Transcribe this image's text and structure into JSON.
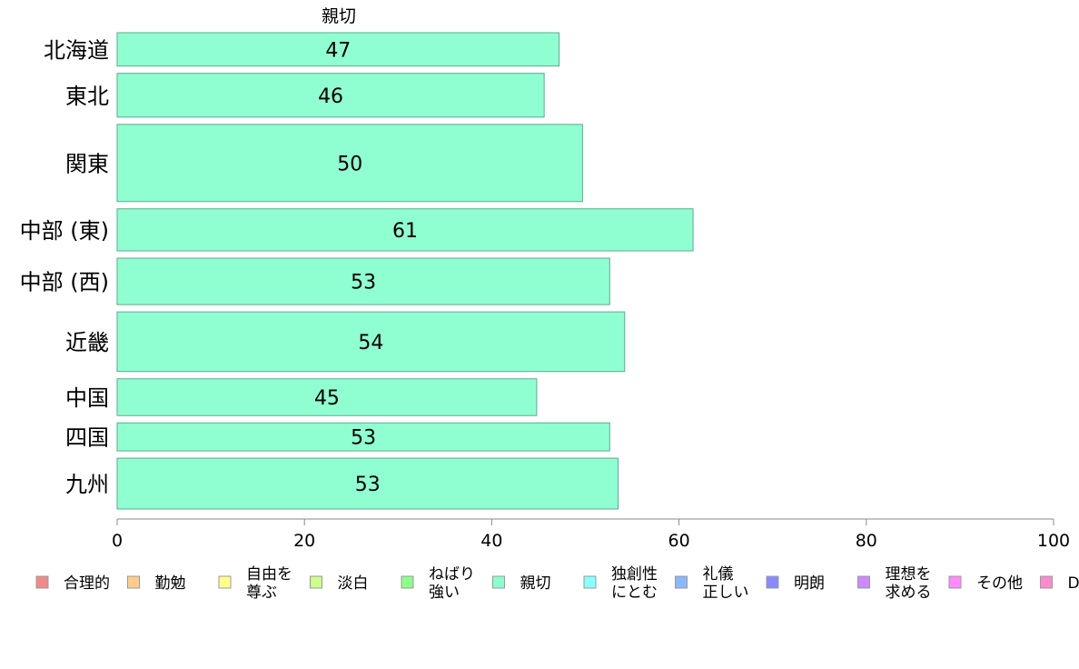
{
  "chart_data": {
    "type": "bar",
    "orientation": "horizontal",
    "title": "親切",
    "categories": [
      "北海道",
      "東北",
      "関東",
      "中部 (東)",
      "中部 (西)",
      "近畿",
      "中国",
      "四国",
      "九州"
    ],
    "values": [
      47.2,
      45.6,
      49.7,
      61.5,
      52.6,
      54.2,
      44.8,
      52.6,
      53.5
    ],
    "value_labels": [
      "47",
      "46",
      "50",
      "61",
      "53",
      "54",
      "45",
      "53",
      "53"
    ],
    "bar_weights": [
      38,
      50,
      88,
      48,
      53,
      68,
      42,
      32,
      58
    ],
    "bar_color": "#8fffd2",
    "bar_border": "#5faa8c",
    "xlim": [
      0,
      100
    ],
    "xticks": [
      0,
      20,
      40,
      60,
      80,
      100
    ],
    "xtick_labels": [
      "0",
      "20",
      "40",
      "60",
      "80",
      "100"
    ],
    "xlabel": "",
    "ylabel": "",
    "grid": false,
    "legend_position": "bottom",
    "legend": [
      {
        "label": "合理的",
        "color": "#f08a8a"
      },
      {
        "label": "勤勉",
        "color": "#ffcc8a"
      },
      {
        "label": "自由を\n尊ぶ",
        "color": "#ffff8a"
      },
      {
        "label": "淡白",
        "color": "#ccff8a"
      },
      {
        "label": "ねばり\n強い",
        "color": "#8aff8a"
      },
      {
        "label": "親切",
        "color": "#8affcc"
      },
      {
        "label": "独創性\nにとむ",
        "color": "#8affff"
      },
      {
        "label": "礼儀\n正しい",
        "color": "#8ab8ff"
      },
      {
        "label": "明朗",
        "color": "#8a8aff"
      },
      {
        "label": "理想を\n求める",
        "color": "#cc8aff"
      },
      {
        "label": "その他",
        "color": "#ff8aff"
      },
      {
        "label": "D",
        "color": "#ff8acc"
      }
    ]
  }
}
